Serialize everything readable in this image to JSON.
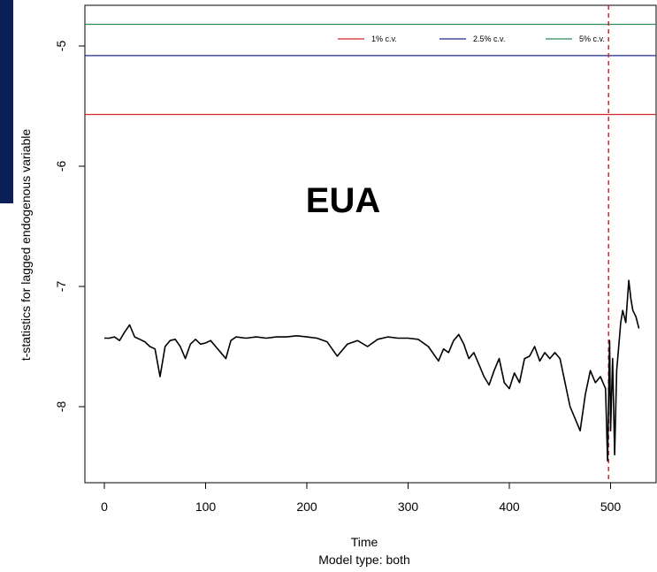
{
  "chart_data": {
    "type": "line",
    "xlabel": "Time",
    "subtitle": "Model type: both",
    "ylabel": "t-statistics for lagged endogenous variable",
    "annotation": "EUA",
    "xlim": [
      -20,
      550
    ],
    "ylim": [
      -8.6,
      -4.7
    ],
    "xticks": [
      0,
      100,
      200,
      300,
      400,
      500
    ],
    "xtick_labels": [
      "0",
      "100",
      "200",
      "300",
      "400",
      "500"
    ],
    "yticks": [
      -5,
      -6,
      -7,
      -8
    ],
    "ytick_labels": [
      "-5",
      "-6",
      "-7",
      "-8"
    ],
    "hlines": [
      {
        "label": "1% c.v.",
        "y": -5.57,
        "color": "#d62728"
      },
      {
        "label": "2.5% c.v.",
        "y": -5.08,
        "color": "#1f2a8a"
      },
      {
        "label": "5% c.v.",
        "y": -4.82,
        "color": "#2e8b57"
      }
    ],
    "vline": {
      "x": 498,
      "color": "#d62728",
      "style": "dashed"
    },
    "legend_position": "top-right",
    "grid": false,
    "series": [
      {
        "color": "#000000",
        "x": [
          0,
          5,
          10,
          15,
          20,
          25,
          30,
          35,
          40,
          45,
          50,
          55,
          60,
          65,
          70,
          75,
          80,
          85,
          90,
          95,
          100,
          105,
          110,
          115,
          120,
          125,
          130,
          140,
          150,
          160,
          170,
          180,
          190,
          200,
          210,
          220,
          230,
          240,
          250,
          260,
          270,
          280,
          290,
          300,
          310,
          320,
          330,
          335,
          340,
          345,
          350,
          355,
          360,
          365,
          370,
          375,
          380,
          385,
          390,
          395,
          400,
          405,
          410,
          415,
          420,
          425,
          430,
          435,
          440,
          445,
          450,
          455,
          460,
          465,
          470,
          475,
          480,
          485,
          490,
          495,
          497,
          499,
          500,
          502,
          504,
          506,
          508,
          510,
          512,
          515,
          518,
          520,
          522,
          525,
          528
        ],
        "y": [
          -7.43,
          -7.43,
          -7.42,
          -7.45,
          -7.38,
          -7.32,
          -7.42,
          -7.44,
          -7.46,
          -7.5,
          -7.52,
          -7.75,
          -7.5,
          -7.45,
          -7.44,
          -7.5,
          -7.6,
          -7.48,
          -7.44,
          -7.48,
          -7.47,
          -7.45,
          -7.5,
          -7.55,
          -7.6,
          -7.45,
          -7.42,
          -7.43,
          -7.42,
          -7.43,
          -7.42,
          -7.42,
          -7.41,
          -7.42,
          -7.43,
          -7.46,
          -7.58,
          -7.48,
          -7.45,
          -7.5,
          -7.44,
          -7.42,
          -7.43,
          -7.43,
          -7.44,
          -7.5,
          -7.62,
          -7.52,
          -7.55,
          -7.45,
          -7.4,
          -7.48,
          -7.6,
          -7.55,
          -7.65,
          -7.75,
          -7.82,
          -7.7,
          -7.6,
          -7.8,
          -7.85,
          -7.72,
          -7.8,
          -7.6,
          -7.58,
          -7.5,
          -7.62,
          -7.55,
          -7.6,
          -7.55,
          -7.6,
          -7.8,
          -8.0,
          -8.1,
          -8.2,
          -7.9,
          -7.7,
          -7.8,
          -7.75,
          -7.85,
          -8.45,
          -7.45,
          -8.2,
          -7.6,
          -8.4,
          -7.7,
          -7.5,
          -7.3,
          -7.2,
          -7.3,
          -6.95,
          -7.1,
          -7.2,
          -7.25,
          -7.35
        ]
      }
    ]
  }
}
